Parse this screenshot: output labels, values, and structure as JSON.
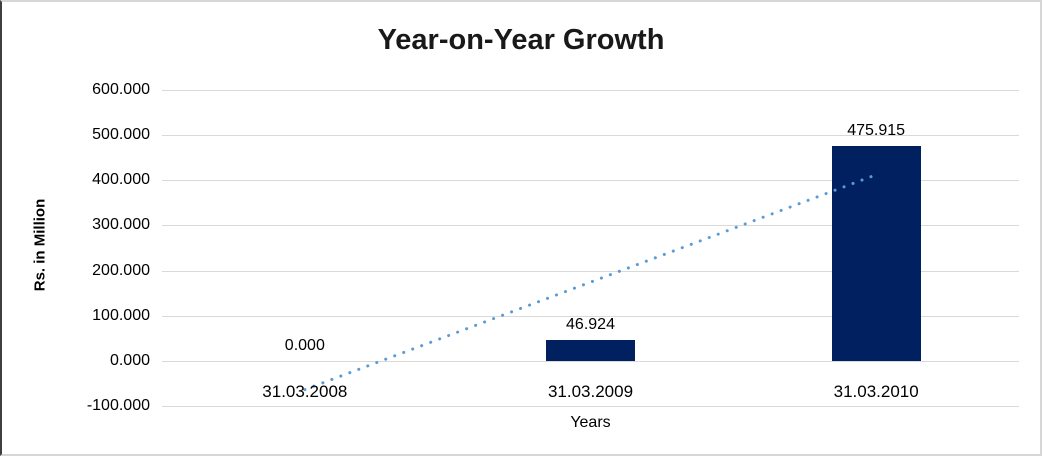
{
  "chart_data": {
    "type": "bar",
    "title": "Year-on-Year Growth",
    "categories": [
      "31.03.2008",
      "31.03.2009",
      "31.03.2010"
    ],
    "values": [
      0.0,
      46.924,
      475.915
    ],
    "value_labels": [
      "0.000",
      "46.924",
      "475.915"
    ],
    "xlabel": "Years",
    "ylabel": "Rs. in Million",
    "ylim": [
      -100,
      600
    ],
    "ytick_step": 100,
    "ytick_labels": [
      "600.000",
      "500.000",
      "400.000",
      "300.000",
      "200.000",
      "100.000",
      "0.000",
      "-100.000"
    ],
    "grid": true,
    "legend": "none",
    "bar_color": "#002060",
    "gridline_color": "#d9d9d9",
    "trendline": {
      "style": "dotted",
      "color": "#5b9bd5",
      "start_category_index": 0,
      "end_category_index": 2,
      "start_value": -63.66,
      "end_value": 412.29
    }
  }
}
